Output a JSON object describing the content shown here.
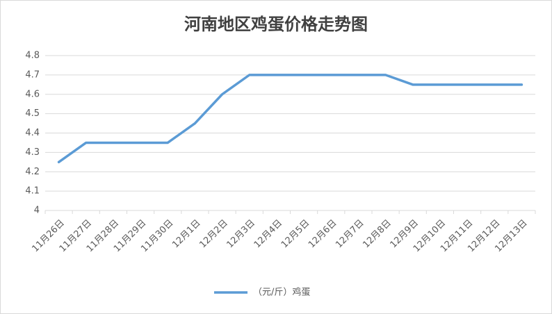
{
  "chart_data": {
    "type": "line",
    "title": "河南地区鸡蛋价格走势图",
    "categories": [
      "11月26日",
      "11月27日",
      "11月28日",
      "11月29日",
      "11月30日",
      "12月1日",
      "12月2日",
      "12月3日",
      "12月4日",
      "12月5日",
      "12月6日",
      "12月7日",
      "12月8日",
      "12月9日",
      "12月10日",
      "12月11日",
      "12月12日",
      "12月13日"
    ],
    "series": [
      {
        "name": "（元/斤）鸡蛋",
        "color": "#5b9bd5",
        "values": [
          4.25,
          4.35,
          4.35,
          4.35,
          4.35,
          4.45,
          4.6,
          4.7,
          4.7,
          4.7,
          4.7,
          4.7,
          4.7,
          4.65,
          4.65,
          4.65,
          4.65,
          4.65
        ]
      }
    ],
    "ylim": [
      4,
      4.8
    ],
    "yticks": [
      4,
      4.1,
      4.2,
      4.3,
      4.4,
      4.5,
      4.6,
      4.7,
      4.8
    ],
    "grid": true,
    "legend": "bottom"
  }
}
